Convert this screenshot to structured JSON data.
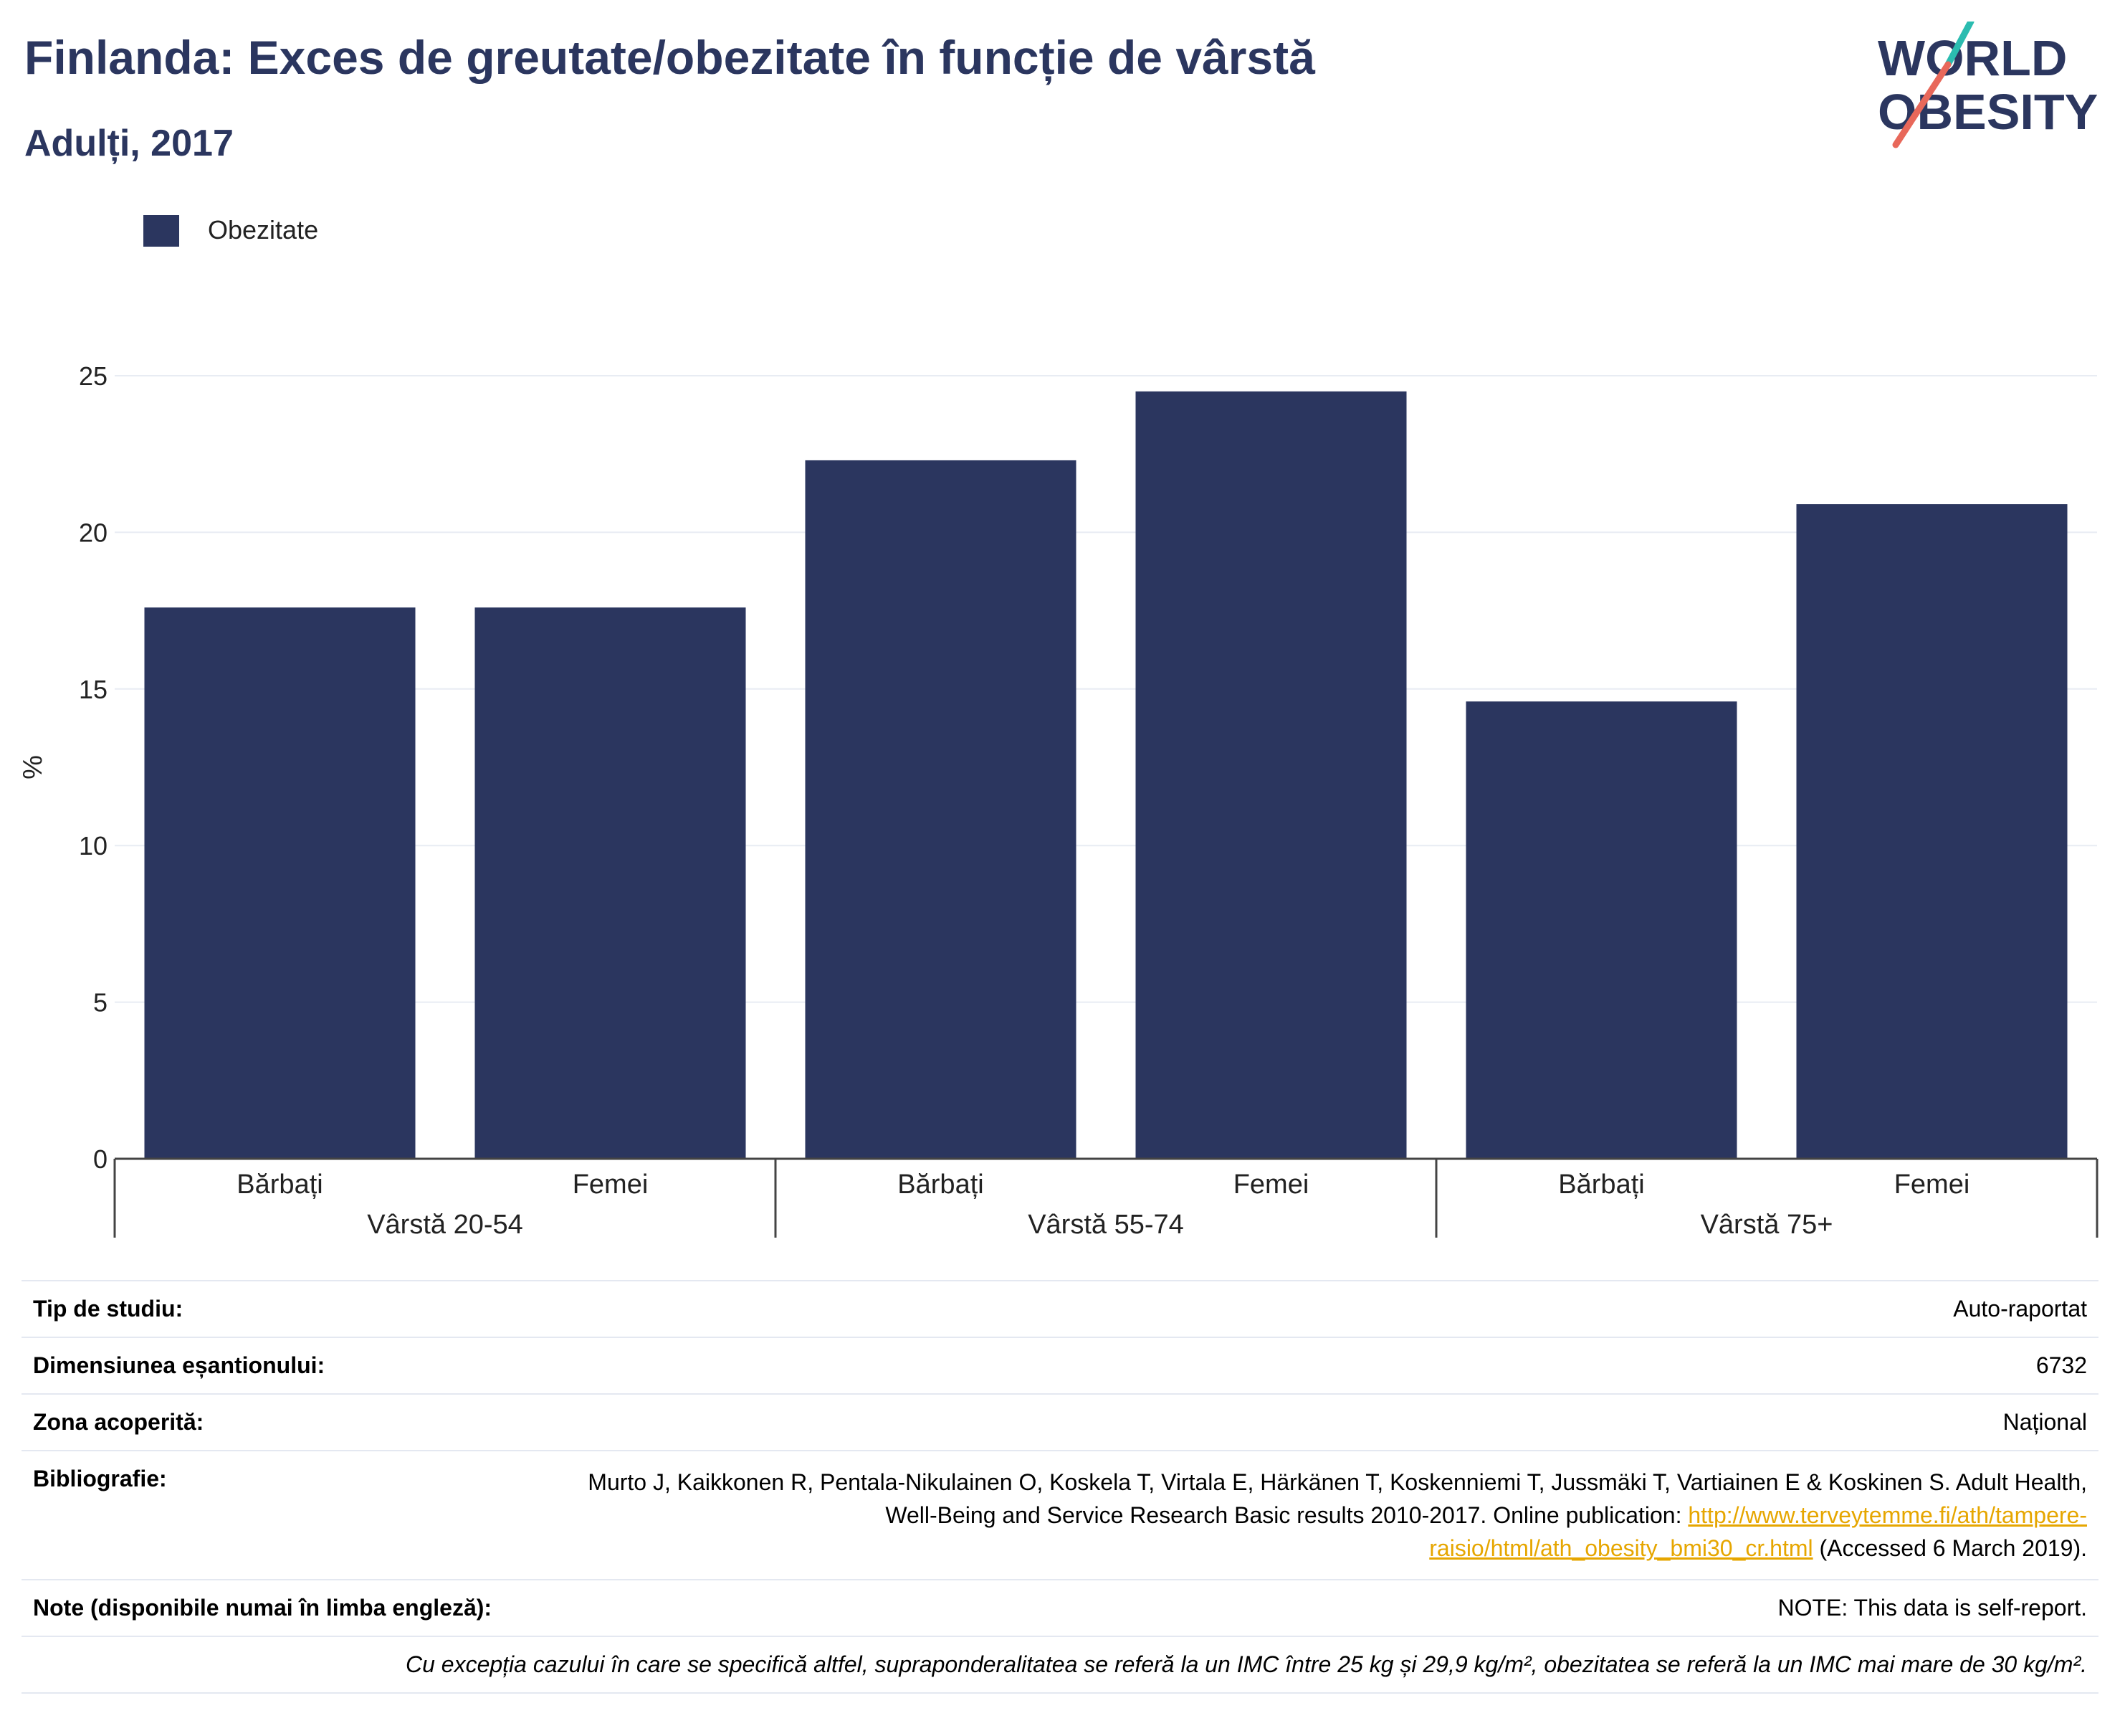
{
  "header": {
    "title": "Finlanda: Exces de greutate/obezitate în funcție de vârstă",
    "subtitle": "Adulți, 2017"
  },
  "logo": {
    "line1": "WORLD",
    "line2": "OBESITY"
  },
  "colors": {
    "bar": "#2b365f",
    "text": "#2b365f",
    "link": "#e6a600",
    "grid": "#e8ecf3",
    "logo_teal": "#2bbcb0",
    "logo_coral": "#e8685a"
  },
  "chart_data": {
    "type": "bar",
    "legend": [
      "Obezitate"
    ],
    "legend_position": "top-left",
    "ylabel": "%",
    "ylim": [
      0,
      25
    ],
    "yticks": [
      0,
      5,
      10,
      15,
      20,
      25
    ],
    "grid": true,
    "groups": [
      "Vârstă 20-54",
      "Vârstă 55-74",
      "Vârstă 75+"
    ],
    "categories": [
      "Bărbați",
      "Femei",
      "Bărbați",
      "Femei",
      "Bărbați",
      "Femei"
    ],
    "series": [
      {
        "name": "Obezitate",
        "values": [
          17.6,
          17.6,
          22.3,
          24.5,
          14.6,
          20.9
        ]
      }
    ]
  },
  "info": {
    "study_type_label": "Tip de studiu:",
    "study_type_value": "Auto-raportat",
    "sample_size_label": "Dimensiunea eșantionului:",
    "sample_size_value": "6732",
    "coverage_label": "Zona acoperită:",
    "coverage_value": "Național",
    "bibliography_label": "Bibliografie:",
    "bibliography_text_1": "Murto J, Kaikkonen R, Pentala-Nikulainen O, Koskela T, Virtala E, Härkänen T, Koskenniemi T, Jussmäki T, Vartiainen E & Koskinen S. Adult Health, Well-Being and Service Research Basic results 2010-2017. Online publication: ",
    "bibliography_link": "http://www.terveytemme.fi/ath/tampere-raisio/html/ath_obesity_bmi30_cr.html",
    "bibliography_text_2": " (Accessed 6 March 2019).",
    "notes_label": "Note (disponibile numai în limba engleză):",
    "notes_value": "NOTE: This data is self-report.",
    "footnote": "Cu excepția cazului în care se specifică altfel, supraponderalitatea se referă la un IMC între 25 kg și 29,9 kg/m², obezitatea se referă la un IMC mai mare de 30 kg/m²."
  }
}
